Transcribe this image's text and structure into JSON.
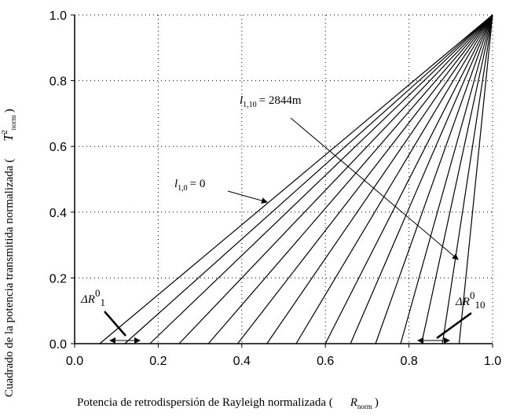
{
  "chart_data": {
    "type": "line",
    "x_label": {
      "text": "Potencia de retrodispersión de Rayleigh normalizada (",
      "symbol": "R",
      "sub": "norm",
      "close": ")"
    },
    "y_label": {
      "text": "Cuadrado de la potencia transmitida normalizada (",
      "symbol": "T",
      "sup": "2",
      "sub": "norm",
      "close": ")"
    },
    "series": [
      {
        "color": "#000000",
        "x": [
          0.06,
          1
        ],
        "values": [
          0,
          1
        ]
      },
      {
        "color": "#000000",
        "x": [
          0.12,
          1
        ],
        "values": [
          0,
          1
        ]
      },
      {
        "color": "#000000",
        "x": [
          0.18,
          1
        ],
        "values": [
          0,
          1
        ]
      },
      {
        "color": "#000000",
        "x": [
          0.25,
          1
        ],
        "values": [
          0,
          1
        ]
      },
      {
        "color": "#000000",
        "x": [
          0.32,
          1
        ],
        "values": [
          0,
          1
        ]
      },
      {
        "color": "#000000",
        "x": [
          0.39,
          1
        ],
        "values": [
          0,
          1
        ]
      },
      {
        "color": "#000000",
        "x": [
          0.46,
          1
        ],
        "values": [
          0,
          1
        ]
      },
      {
        "color": "#000000",
        "x": [
          0.53,
          1
        ],
        "values": [
          0,
          1
        ]
      },
      {
        "color": "#000000",
        "x": [
          0.6,
          1
        ],
        "values": [
          0,
          1
        ]
      },
      {
        "color": "#000000",
        "x": [
          0.66,
          1
        ],
        "values": [
          0,
          1
        ]
      },
      {
        "color": "#000000",
        "x": [
          0.72,
          1
        ],
        "values": [
          0,
          1
        ]
      },
      {
        "color": "#000000",
        "x": [
          0.78,
          1
        ],
        "values": [
          0,
          1
        ]
      },
      {
        "color": "#000000",
        "x": [
          0.83,
          1
        ],
        "values": [
          0,
          1
        ]
      },
      {
        "color": "#000000",
        "x": [
          0.88,
          1
        ],
        "values": [
          0,
          1
        ]
      },
      {
        "color": "#000000",
        "x": [
          0.92,
          1
        ],
        "values": [
          0,
          1
        ]
      }
    ],
    "xlim": [
      0,
      1
    ],
    "ylim": [
      0,
      1
    ],
    "xticks": [
      {
        "value": 0,
        "label": "0.0"
      },
      0.2,
      0.4,
      0.6,
      0.8,
      {
        "value": 1,
        "label": "1.0"
      }
    ],
    "yticks": [
      {
        "value": 0,
        "label": "0.0"
      },
      0.2,
      0.4,
      0.6,
      0.8,
      {
        "value": 1,
        "label": "1.0"
      }
    ],
    "grid": true,
    "annotations": [
      {
        "symbol": "l",
        "sub": "1,0",
        "text": "= 0"
      },
      {
        "symbol": "l",
        "sub": "1,10",
        "text": "= 2844m"
      },
      {
        "symbol": "ΔR",
        "sup": "0",
        "sub": "1"
      },
      {
        "symbol": "ΔR",
        "sup": "0",
        "sub": "10"
      }
    ]
  }
}
